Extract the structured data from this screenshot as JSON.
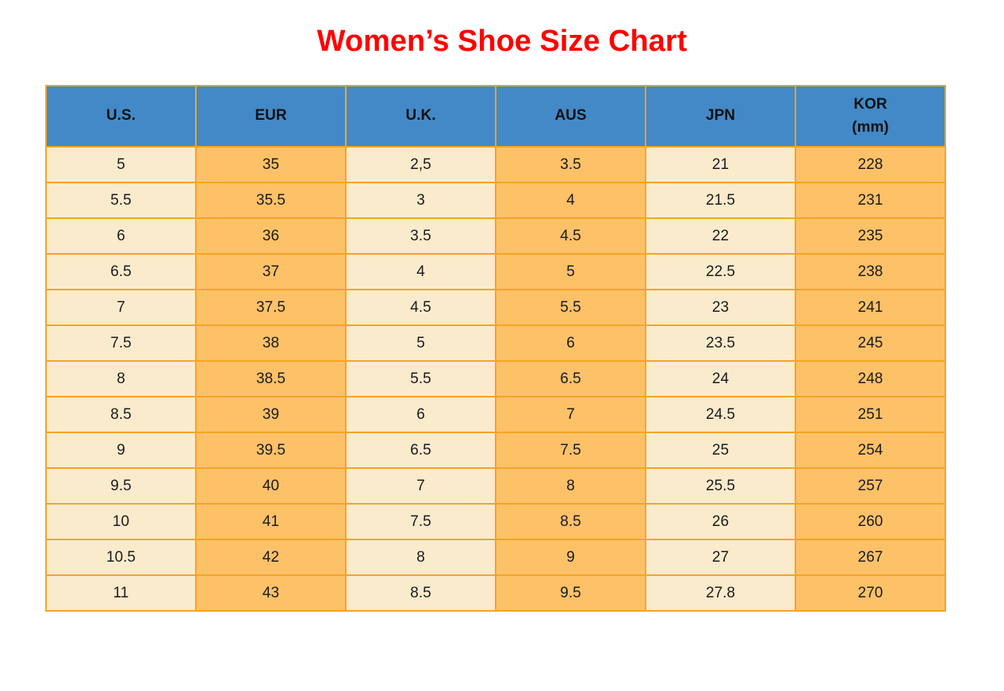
{
  "page": {
    "title": "Women’s Shoe Size Chart"
  },
  "colors": {
    "title": "#FF0000",
    "header_bg": "#4389C7",
    "header_text": "#111111",
    "text": "#1B1B1B",
    "cream": "#FBEBCD",
    "orange": "#FDC168",
    "border": "#F5A425",
    "background": "#FFFFFF"
  },
  "table": {
    "columns": [
      {
        "label": "U.S."
      },
      {
        "label": "EUR"
      },
      {
        "label": "U.K."
      },
      {
        "label": "AUS"
      },
      {
        "label": "JPN"
      },
      {
        "label": "KOR",
        "sublabel": "(mm)"
      }
    ]
  },
  "chart_data": {
    "type": "table",
    "title": "Women’s Shoe Size Chart",
    "columns": [
      "U.S.",
      "EUR",
      "U.K.",
      "AUS",
      "JPN",
      "KOR (mm)"
    ],
    "rows": [
      [
        "5",
        "35",
        "2,5",
        "3.5",
        "21",
        "228"
      ],
      [
        "5.5",
        "35.5",
        "3",
        "4",
        "21.5",
        "231"
      ],
      [
        "6",
        "36",
        "3.5",
        "4.5",
        "22",
        "235"
      ],
      [
        "6.5",
        "37",
        "4",
        "5",
        "22.5",
        "238"
      ],
      [
        "7",
        "37.5",
        "4.5",
        "5.5",
        "23",
        "241"
      ],
      [
        "7.5",
        "38",
        "5",
        "6",
        "23.5",
        "245"
      ],
      [
        "8",
        "38.5",
        "5.5",
        "6.5",
        "24",
        "248"
      ],
      [
        "8.5",
        "39",
        "6",
        "7",
        "24.5",
        "251"
      ],
      [
        "9",
        "39.5",
        "6.5",
        "7.5",
        "25",
        "254"
      ],
      [
        "9.5",
        "40",
        "7",
        "8",
        "25.5",
        "257"
      ],
      [
        "10",
        "41",
        "7.5",
        "8.5",
        "26",
        "260"
      ],
      [
        "10.5",
        "42",
        "8",
        "9",
        "27",
        "267"
      ],
      [
        "11",
        "43",
        "8.5",
        "9.5",
        "27.8",
        "270"
      ]
    ]
  }
}
